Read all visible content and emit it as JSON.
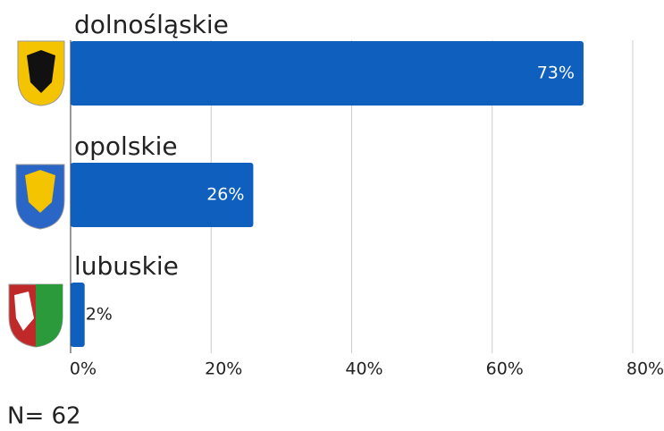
{
  "chart_data": {
    "type": "bar",
    "orientation": "horizontal",
    "categories": [
      "dolnośląskie",
      "opolskie",
      "lubuskie"
    ],
    "values": [
      73,
      26,
      2
    ],
    "value_labels": [
      "73%",
      "26%",
      "2%"
    ],
    "color": "#0f5fbf",
    "xlim": [
      0,
      80
    ],
    "xticks": [
      {
        "value": 0,
        "label": "0%"
      },
      {
        "value": 20,
        "label": "20%"
      },
      {
        "value": 40,
        "label": "40%"
      },
      {
        "value": 60,
        "label": "60%"
      },
      {
        "value": 80,
        "label": "80%"
      }
    ],
    "grid": true,
    "annotation": "N= 62"
  }
}
